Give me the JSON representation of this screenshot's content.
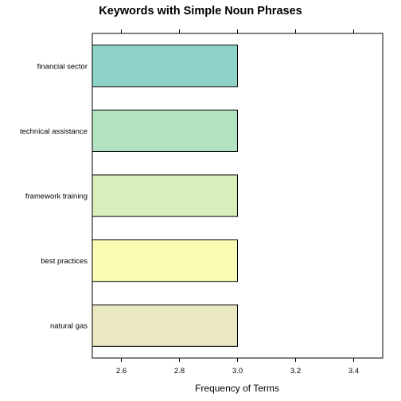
{
  "chart_data": {
    "type": "bar",
    "orientation": "horizontal",
    "title": "Keywords with Simple Noun Phrases",
    "xlabel": "Frequency of Terms",
    "ylabel": "",
    "categories": [
      "financial sector",
      "technical assistance",
      "framework training",
      "best practices",
      "natural gas"
    ],
    "values": [
      3,
      3,
      3,
      3,
      3
    ],
    "xlim": [
      2.5,
      3.5
    ],
    "xticks": [
      2.6,
      2.8,
      3.0,
      3.2,
      3.4
    ],
    "xtick_labels": [
      "2.6",
      "2.8",
      "3.0",
      "3.2",
      "3.4"
    ],
    "bar_colors": [
      "#8DD3C7",
      "#B3E2C1",
      "#D8EFBB",
      "#FBFCB3",
      "#EAE8C0"
    ],
    "grid": false,
    "legend": "none"
  }
}
